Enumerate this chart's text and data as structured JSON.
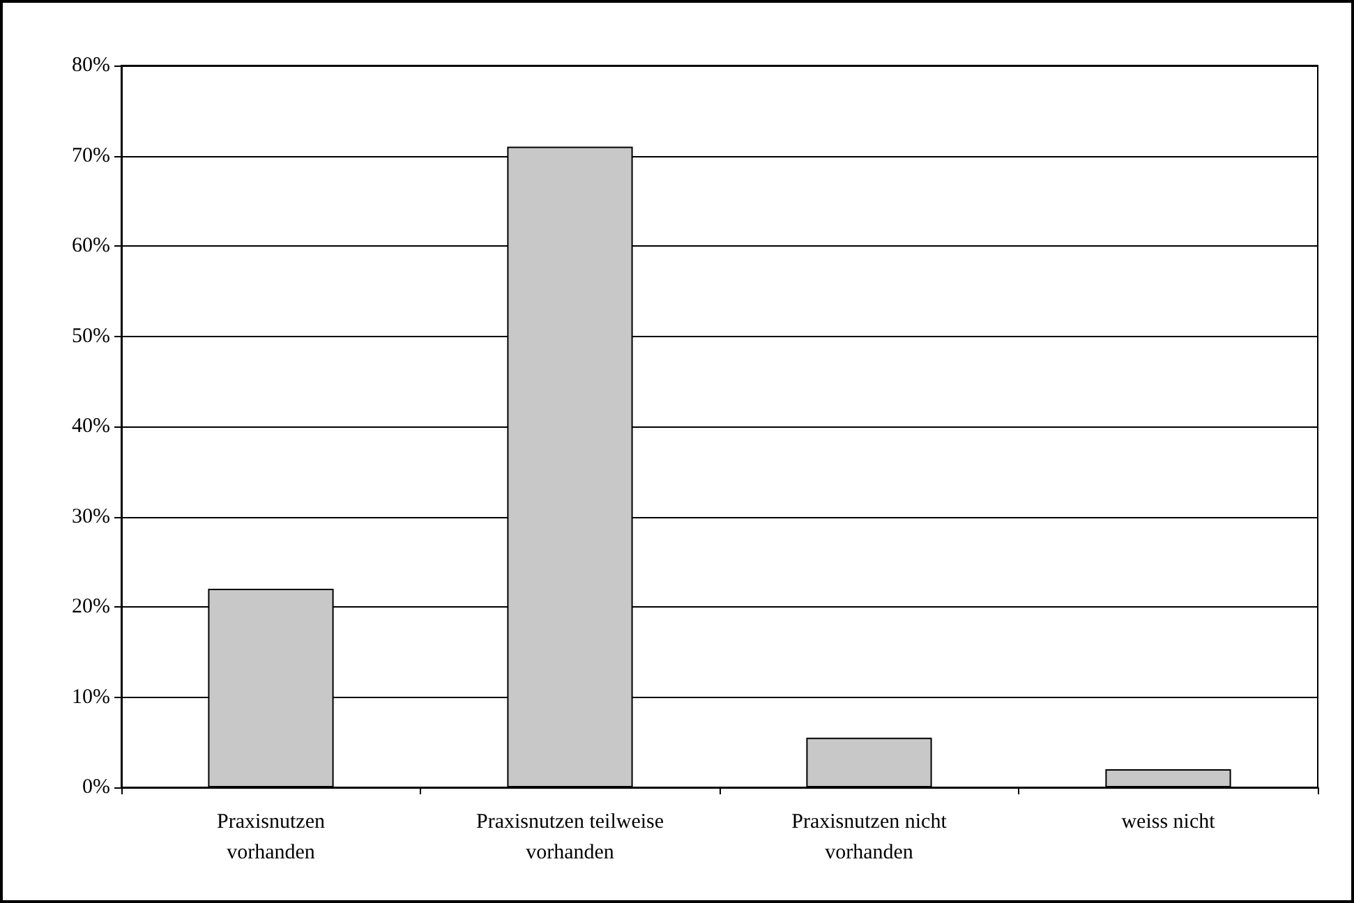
{
  "chart_data": {
    "type": "bar",
    "categories": [
      "Praxisnutzen\nvorhanden",
      "Praxisnutzen teilweise\nvorhanden",
      "Praxisnutzen nicht\nvorhanden",
      "weiss nicht"
    ],
    "values": [
      22,
      71,
      5.5,
      2
    ],
    "color": "#c8c8c8",
    "ylim": [
      0,
      80
    ],
    "yticks": [
      {
        "value": 0,
        "label": "0%"
      },
      {
        "value": 10,
        "label": "10%"
      },
      {
        "value": 20,
        "label": "20%"
      },
      {
        "value": 30,
        "label": "30%"
      },
      {
        "value": 40,
        "label": "40%"
      },
      {
        "value": 50,
        "label": "50%"
      },
      {
        "value": 60,
        "label": "60%"
      },
      {
        "value": 70,
        "label": "70%"
      },
      {
        "value": 80,
        "label": "80%"
      }
    ],
    "grid": "y"
  }
}
